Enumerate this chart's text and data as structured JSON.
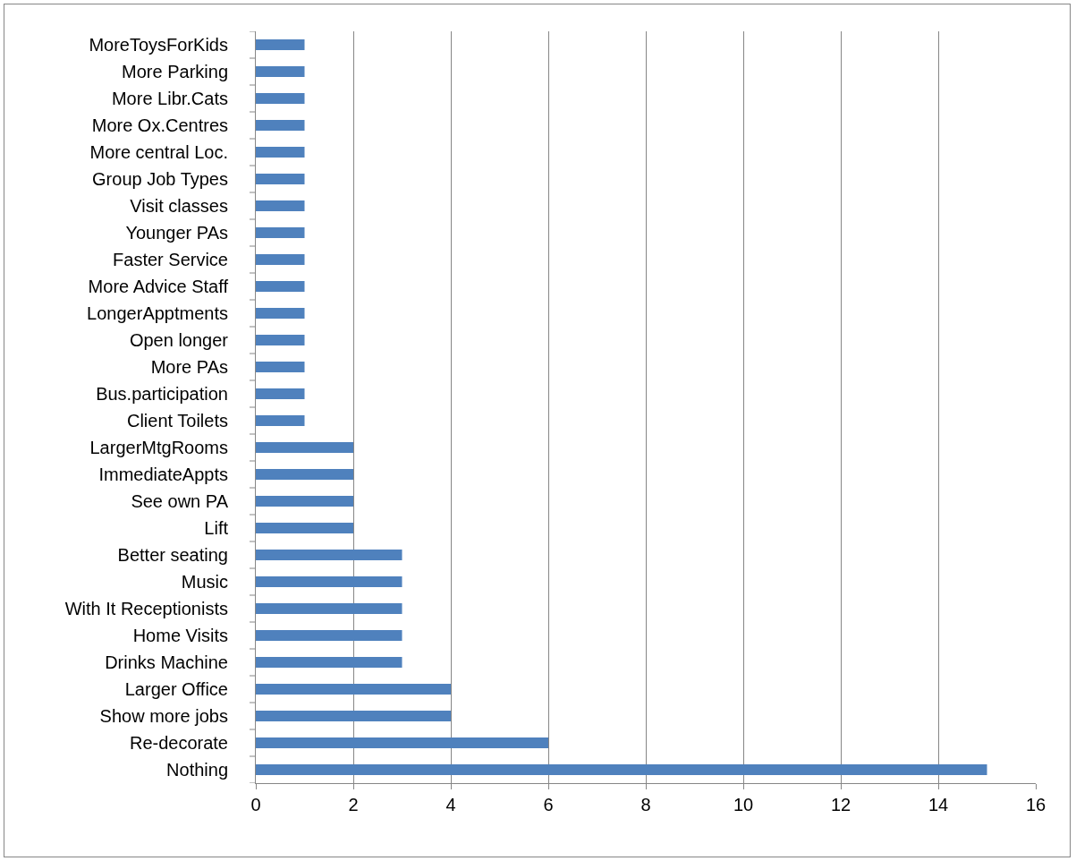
{
  "chart_data": {
    "type": "bar",
    "orientation": "horizontal",
    "categories": [
      "MoreToysForKids",
      "More Parking",
      "More Libr.Cats",
      "More Ox.Centres",
      "More central Loc.",
      "Group Job Types",
      "Visit classes",
      "Younger PAs",
      "Faster Service",
      "More Advice Staff",
      "LongerApptments",
      "Open longer",
      "More PAs",
      "Bus.participation",
      "Client Toilets",
      "LargerMtgRooms",
      "ImmediateAppts",
      "See own PA",
      "Lift",
      "Better seating",
      "Music",
      "With It Receptionists",
      "Home Visits",
      "Drinks Machine",
      "Larger Office",
      "Show more jobs",
      "Re-decorate",
      "Nothing"
    ],
    "values": [
      1,
      1,
      1,
      1,
      1,
      1,
      1,
      1,
      1,
      1,
      1,
      1,
      1,
      1,
      1,
      2,
      2,
      2,
      2,
      3,
      3,
      3,
      3,
      3,
      4,
      4,
      6,
      15
    ],
    "color": "#4f81bd",
    "xlim": [
      0,
      16
    ],
    "xticks": [
      0,
      2,
      4,
      6,
      8,
      10,
      12,
      14,
      16
    ],
    "grid": "x"
  }
}
